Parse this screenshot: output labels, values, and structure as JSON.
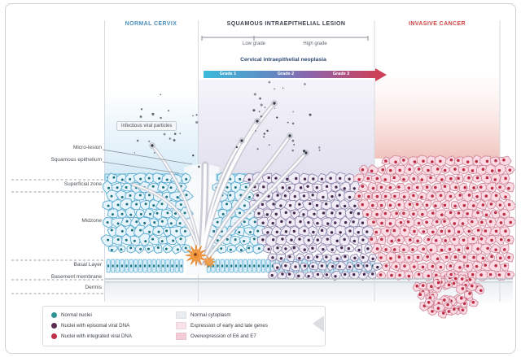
{
  "header": {
    "sections": [
      {
        "id": "normal",
        "label": "NORMAL CERVIX",
        "color": "#4a8fc0"
      },
      {
        "id": "sil",
        "label": "SQUAMOUS INTRAEPITHELIAL LESION",
        "color": "#3a414d"
      },
      {
        "id": "invasive",
        "label": "INVASIVE CANCER",
        "color": "#cf4545"
      }
    ],
    "grade_low": "Low grade",
    "grade_high": "High grade",
    "cin_title": "Cervical intraepithelial neoplasia",
    "cin_grades": [
      "Grade 1",
      "Grade 2",
      "Grade 3"
    ]
  },
  "annotations": {
    "infectious_label": "Infectious viral particles",
    "micro_lesion": "Micro-lesion",
    "squamous_epithelium": "Squamous epithelium",
    "superficial_zone": "Superficial zone",
    "midzone": "Midzone",
    "basal_layer": "Basal Layer",
    "basement_membrane": "Basement membrane",
    "dermis": "Dermis"
  },
  "legend": {
    "nuclei_items": [
      {
        "label": "Normal nuclei",
        "color": "#2f9494"
      },
      {
        "label": "Nuclei with episomal viral DNA",
        "color": "#5a2c4f"
      },
      {
        "label": "Nuclei with integrated viral DNA",
        "color": "#c22f48"
      }
    ],
    "cytoplasm_items": [
      {
        "label": "Normal cytoplasm",
        "color": "#e9edf0"
      },
      {
        "label": "Expression of early and late genes",
        "color": "#f8e2e7"
      },
      {
        "label": "Overexpression of E6 and E7",
        "color": "#f4cdd7"
      }
    ]
  },
  "palette": {
    "arrow_start": "#3ab9da",
    "arrow_mid1": "#5f8cc4",
    "arrow_mid2": "#8f63aa",
    "arrow_end": "#cc4059",
    "normal_cell": "#e8f4fb",
    "lesion_cell": "#efecf6",
    "cancer_cell": "#fbdbe3",
    "infected_basal_cell": "#f5a14b"
  }
}
